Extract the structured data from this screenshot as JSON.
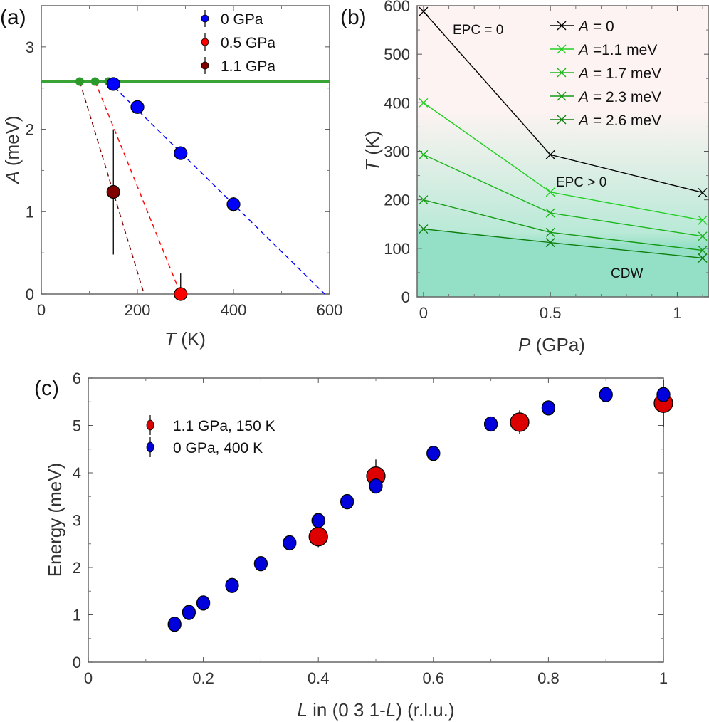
{
  "chart_data": [
    {
      "panel_label": "(a)",
      "type": "scatter",
      "xlabel_var": "T",
      "xlabel_unit": " (K)",
      "ylabel_var": "A",
      "ylabel_unit": " (meV)",
      "xlim": [
        0,
        600
      ],
      "ylim": [
        0,
        3.5
      ],
      "xticks": [
        0,
        200,
        400,
        600
      ],
      "yticks": [
        0,
        1,
        2,
        3
      ],
      "grid": false,
      "legend": "top-right",
      "series": [
        {
          "name": "0 GPa",
          "color": "#0000ff",
          "x": [
            150,
            200,
            290,
            400
          ],
          "y": [
            2.55,
            2.27,
            1.71,
            1.09
          ],
          "err": [
            0.05,
            0.06,
            0.08,
            0.09
          ],
          "fit": {
            "x": [
              140,
              590
            ],
            "y": [
              2.58,
              0
            ]
          },
          "onset_T": 140
        },
        {
          "name": "0.5 GPa",
          "color": "#ff0000",
          "x": [
            290
          ],
          "y": [
            0
          ],
          "err_up": [
            0.25
          ],
          "err": [
            0
          ],
          "fit": {
            "x": [
              112,
              290
            ],
            "y": [
              2.58,
              0
            ]
          },
          "onset_T": 112
        },
        {
          "name": "1.1 GPa",
          "color": "#800000",
          "x": [
            150
          ],
          "y": [
            1.24
          ],
          "err": [
            0.76
          ],
          "fit": {
            "x": [
              80,
              214
            ],
            "y": [
              2.58,
              0
            ]
          },
          "onset_T": 80
        }
      ],
      "reference_line": {
        "y": 2.58,
        "color": "#3aa335"
      }
    },
    {
      "panel_label": "(b)",
      "type": "line",
      "xlabel_var": "P",
      "xlabel_unit": " (GPa)",
      "ylabel_var": "T",
      "ylabel_unit": " (K)",
      "xlim": [
        -0.025,
        1.125
      ],
      "ylim": [
        0,
        600
      ],
      "xticks": [
        0,
        0.5,
        1
      ],
      "yticks": [
        0,
        100,
        200,
        300,
        400,
        500,
        600
      ],
      "x": [
        0,
        0.5,
        1.1
      ],
      "grid": false,
      "legend": "top-right",
      "series": [
        {
          "name": "A = 0",
          "color": "#000000",
          "values": [
            588,
            293,
            215
          ]
        },
        {
          "name": "A =1.1 meV",
          "color": "#22d022",
          "values": [
            400,
            216,
            158
          ]
        },
        {
          "name": "A = 1.7 meV",
          "color": "#1cb51c",
          "values": [
            293,
            173,
            125
          ]
        },
        {
          "name": "A = 2.3 meV",
          "color": "#149a14",
          "values": [
            200,
            133,
            96
          ]
        },
        {
          "name": "A = 2.6 meV",
          "color": "#0e7f0e",
          "values": [
            140,
            112,
            80
          ]
        }
      ],
      "annotations": [
        "EPC = 0",
        "EPC > 0",
        "CDW"
      ],
      "region_colors": {
        "normal": "#fdf3f2",
        "cdw": "#93e0c6"
      }
    },
    {
      "panel_label": "(c)",
      "type": "scatter",
      "xlabel": "L in (0 3 1-L) (r.l.u.)",
      "xlabel_parts": [
        "L",
        " in (0 3 1-",
        "L",
        ") (r.l.u.)"
      ],
      "ylabel": "Energy (meV)",
      "xlim": [
        0,
        1
      ],
      "ylim": [
        0,
        6
      ],
      "xticks": [
        0,
        0.2,
        0.4,
        0.6,
        0.8,
        1
      ],
      "yticks": [
        0,
        1,
        2,
        3,
        4,
        5,
        6
      ],
      "grid": false,
      "legend": "top-left",
      "series": [
        {
          "name": "1.1 GPa, 150 K",
          "color": "#dd0000",
          "x": [
            0.4,
            0.5,
            0.75,
            1.0
          ],
          "y": [
            2.65,
            3.93,
            5.07,
            5.47
          ],
          "err": [
            0.22,
            0.35,
            0.25,
            0.5
          ]
        },
        {
          "name": "0 GPa, 400 K",
          "color": "#0000dd",
          "x": [
            0.15,
            0.175,
            0.2,
            0.25,
            0.3,
            0.35,
            0.4,
            0.45,
            0.5,
            0.6,
            0.7,
            0.8,
            0.9,
            1.0
          ],
          "y": [
            0.8,
            1.05,
            1.25,
            1.62,
            2.08,
            2.52,
            2.99,
            3.39,
            3.72,
            4.41,
            5.03,
            5.37,
            5.65,
            5.65
          ],
          "err": [
            0.06,
            0.06,
            0.06,
            0.06,
            0.06,
            0.07,
            0.07,
            0.07,
            0.08,
            0.07,
            0.07,
            0.08,
            0.08,
            0.08
          ]
        }
      ]
    }
  ]
}
